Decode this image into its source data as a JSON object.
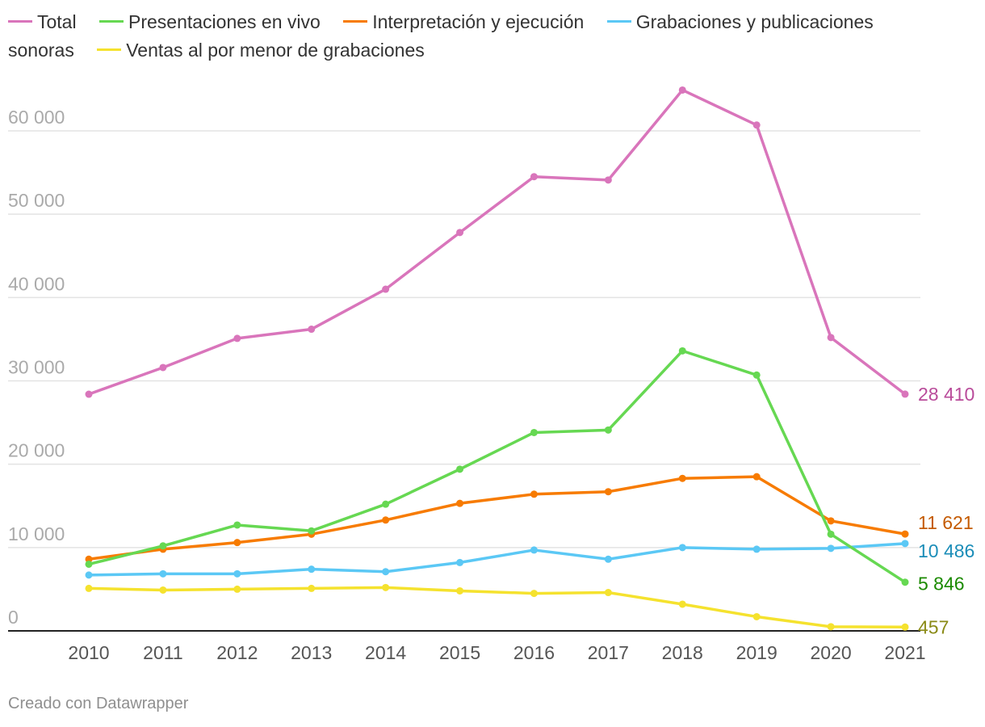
{
  "credit": "Creado con Datawrapper",
  "chart_data": {
    "type": "line",
    "title": "",
    "xlabel": "",
    "ylabel": "",
    "x": [
      "2010",
      "2011",
      "2012",
      "2013",
      "2014",
      "2015",
      "2016",
      "2017",
      "2018",
      "2019",
      "2020",
      "2021"
    ],
    "ylim": [
      0,
      65000
    ],
    "yticks": [
      0,
      10000,
      20000,
      30000,
      40000,
      50000,
      60000
    ],
    "ytick_labels": [
      "0",
      "10 000",
      "20 000",
      "30 000",
      "40 000",
      "50 000",
      "60 000"
    ],
    "grid": true,
    "legend_position": "top",
    "series": [
      {
        "name": "Total",
        "color": "#d975bb",
        "values": [
          28400,
          31600,
          35100,
          36200,
          41000,
          47800,
          54500,
          54100,
          64900,
          60700,
          35200,
          28410
        ],
        "end_label": "28 410",
        "end_label_color": "#b94b9a"
      },
      {
        "name": "Presentaciones en vivo",
        "color": "#66d852",
        "values": [
          8000,
          10200,
          12700,
          12000,
          15200,
          19400,
          23800,
          24100,
          33600,
          30700,
          11600,
          5846
        ],
        "end_label": "5 846",
        "end_label_color": "#1b8a00"
      },
      {
        "name": "Interpretación y ejecución",
        "color": "#f77b00",
        "values": [
          8600,
          9800,
          10600,
          11600,
          13300,
          15300,
          16400,
          16700,
          18300,
          18500,
          13200,
          11621
        ],
        "end_label": "11 621",
        "end_label_color": "#c45a00"
      },
      {
        "name": "Grabaciones y publicaciones sonoras",
        "color": "#5bc8f5",
        "values": [
          6700,
          6850,
          6850,
          7400,
          7100,
          8200,
          9700,
          8600,
          10000,
          9800,
          9900,
          10486
        ],
        "end_label": "10 486",
        "end_label_color": "#1b8db8"
      },
      {
        "name": "Ventas al por menor de grabaciones",
        "color": "#f5e22e",
        "values": [
          5100,
          4900,
          5000,
          5100,
          5200,
          4800,
          4500,
          4600,
          3200,
          1700,
          500,
          457
        ],
        "end_label": "457",
        "end_label_color": "#8a8a16"
      }
    ]
  }
}
